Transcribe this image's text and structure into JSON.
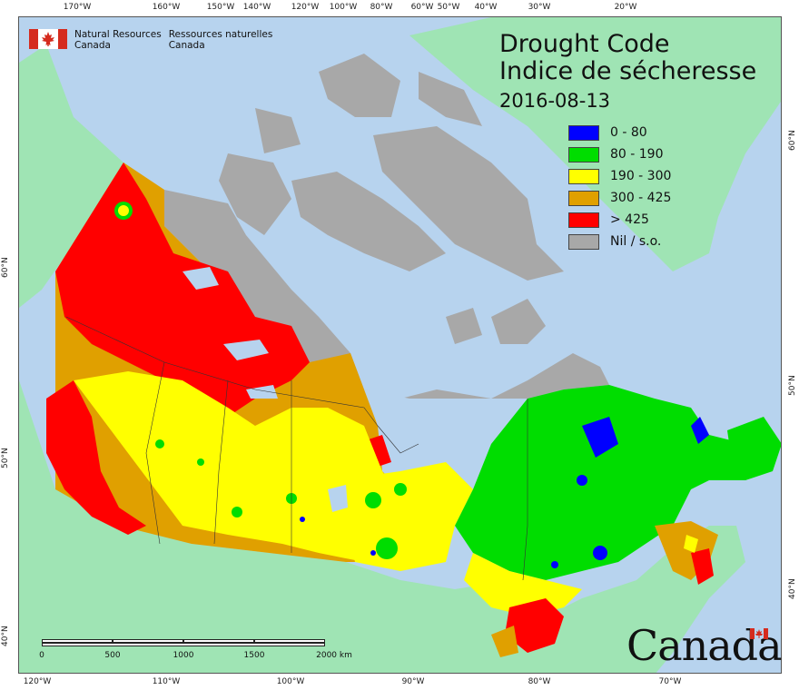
{
  "agency": {
    "name_en_line1": "Natural Resources",
    "name_en_line2": "Canada",
    "name_fr_line1": "Ressources naturelles",
    "name_fr_line2": "Canada"
  },
  "title": {
    "en": "Drought Code",
    "fr": "Indice de sécheresse",
    "date": "2016-08-13"
  },
  "legend": [
    {
      "label": "0 - 80",
      "color": "#0000ff"
    },
    {
      "label": "80 - 190",
      "color": "#00dd00"
    },
    {
      "label": "190 - 300",
      "color": "#ffff00"
    },
    {
      "label": "300 - 425",
      "color": "#e0a000"
    },
    {
      "label": "> 425",
      "color": "#ff0000"
    },
    {
      "label": "Nil / s.o.",
      "color": "#a8a8a8"
    }
  ],
  "scale": {
    "labels": [
      "0",
      "500",
      "1000",
      "1500",
      "2000  km"
    ]
  },
  "graticule": {
    "top": [
      "170°W",
      "160°W",
      "150°W",
      "140°W",
      "120°W",
      "100°W",
      "80°W",
      "60°W",
      "50°W",
      "40°W",
      "30°W",
      "20°W"
    ],
    "bottom": [
      "120°W",
      "110°W",
      "100°W",
      "90°W",
      "80°W",
      "70°W"
    ],
    "left": [
      "60°N",
      "50°N",
      "40°N"
    ],
    "right": [
      "60°N",
      "50°N",
      "40°N"
    ]
  },
  "wordmark": "Canada",
  "colors": {
    "ocean": "#b7d3ee",
    "land_other": "#9fe4b4",
    "nodata": "#a8a8a8"
  }
}
